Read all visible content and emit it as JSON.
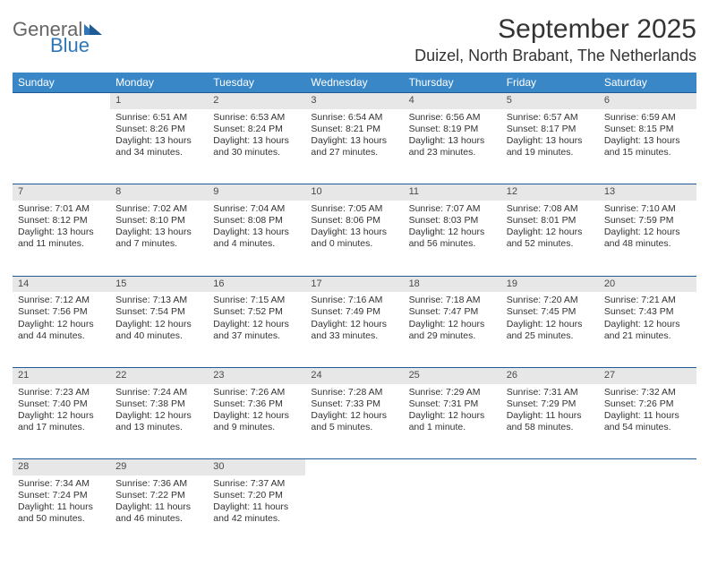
{
  "header": {
    "logo_general": "General",
    "logo_blue": "Blue",
    "month_title": "September 2025",
    "location": "Duizel, North Brabant, The Netherlands"
  },
  "colors": {
    "header_bg": "#3a87c7",
    "header_text": "#ffffff",
    "daynum_bg": "#e7e7e7",
    "border": "#1f5c95",
    "body_text": "#333333",
    "logo_gray": "#666666",
    "logo_blue": "#2f77b6"
  },
  "day_names": [
    "Sunday",
    "Monday",
    "Tuesday",
    "Wednesday",
    "Thursday",
    "Friday",
    "Saturday"
  ],
  "weeks": [
    {
      "nums": [
        "",
        "1",
        "2",
        "3",
        "4",
        "5",
        "6"
      ],
      "cells": [
        {
          "lines": []
        },
        {
          "lines": [
            "Sunrise: 6:51 AM",
            "Sunset: 8:26 PM",
            "Daylight: 13 hours",
            "and 34 minutes."
          ]
        },
        {
          "lines": [
            "Sunrise: 6:53 AM",
            "Sunset: 8:24 PM",
            "Daylight: 13 hours",
            "and 30 minutes."
          ]
        },
        {
          "lines": [
            "Sunrise: 6:54 AM",
            "Sunset: 8:21 PM",
            "Daylight: 13 hours",
            "and 27 minutes."
          ]
        },
        {
          "lines": [
            "Sunrise: 6:56 AM",
            "Sunset: 8:19 PM",
            "Daylight: 13 hours",
            "and 23 minutes."
          ]
        },
        {
          "lines": [
            "Sunrise: 6:57 AM",
            "Sunset: 8:17 PM",
            "Daylight: 13 hours",
            "and 19 minutes."
          ]
        },
        {
          "lines": [
            "Sunrise: 6:59 AM",
            "Sunset: 8:15 PM",
            "Daylight: 13 hours",
            "and 15 minutes."
          ]
        }
      ]
    },
    {
      "nums": [
        "7",
        "8",
        "9",
        "10",
        "11",
        "12",
        "13"
      ],
      "cells": [
        {
          "lines": [
            "Sunrise: 7:01 AM",
            "Sunset: 8:12 PM",
            "Daylight: 13 hours",
            "and 11 minutes."
          ]
        },
        {
          "lines": [
            "Sunrise: 7:02 AM",
            "Sunset: 8:10 PM",
            "Daylight: 13 hours",
            "and 7 minutes."
          ]
        },
        {
          "lines": [
            "Sunrise: 7:04 AM",
            "Sunset: 8:08 PM",
            "Daylight: 13 hours",
            "and 4 minutes."
          ]
        },
        {
          "lines": [
            "Sunrise: 7:05 AM",
            "Sunset: 8:06 PM",
            "Daylight: 13 hours",
            "and 0 minutes."
          ]
        },
        {
          "lines": [
            "Sunrise: 7:07 AM",
            "Sunset: 8:03 PM",
            "Daylight: 12 hours",
            "and 56 minutes."
          ]
        },
        {
          "lines": [
            "Sunrise: 7:08 AM",
            "Sunset: 8:01 PM",
            "Daylight: 12 hours",
            "and 52 minutes."
          ]
        },
        {
          "lines": [
            "Sunrise: 7:10 AM",
            "Sunset: 7:59 PM",
            "Daylight: 12 hours",
            "and 48 minutes."
          ]
        }
      ]
    },
    {
      "nums": [
        "14",
        "15",
        "16",
        "17",
        "18",
        "19",
        "20"
      ],
      "cells": [
        {
          "lines": [
            "Sunrise: 7:12 AM",
            "Sunset: 7:56 PM",
            "Daylight: 12 hours",
            "and 44 minutes."
          ]
        },
        {
          "lines": [
            "Sunrise: 7:13 AM",
            "Sunset: 7:54 PM",
            "Daylight: 12 hours",
            "and 40 minutes."
          ]
        },
        {
          "lines": [
            "Sunrise: 7:15 AM",
            "Sunset: 7:52 PM",
            "Daylight: 12 hours",
            "and 37 minutes."
          ]
        },
        {
          "lines": [
            "Sunrise: 7:16 AM",
            "Sunset: 7:49 PM",
            "Daylight: 12 hours",
            "and 33 minutes."
          ]
        },
        {
          "lines": [
            "Sunrise: 7:18 AM",
            "Sunset: 7:47 PM",
            "Daylight: 12 hours",
            "and 29 minutes."
          ]
        },
        {
          "lines": [
            "Sunrise: 7:20 AM",
            "Sunset: 7:45 PM",
            "Daylight: 12 hours",
            "and 25 minutes."
          ]
        },
        {
          "lines": [
            "Sunrise: 7:21 AM",
            "Sunset: 7:43 PM",
            "Daylight: 12 hours",
            "and 21 minutes."
          ]
        }
      ]
    },
    {
      "nums": [
        "21",
        "22",
        "23",
        "24",
        "25",
        "26",
        "27"
      ],
      "cells": [
        {
          "lines": [
            "Sunrise: 7:23 AM",
            "Sunset: 7:40 PM",
            "Daylight: 12 hours",
            "and 17 minutes."
          ]
        },
        {
          "lines": [
            "Sunrise: 7:24 AM",
            "Sunset: 7:38 PM",
            "Daylight: 12 hours",
            "and 13 minutes."
          ]
        },
        {
          "lines": [
            "Sunrise: 7:26 AM",
            "Sunset: 7:36 PM",
            "Daylight: 12 hours",
            "and 9 minutes."
          ]
        },
        {
          "lines": [
            "Sunrise: 7:28 AM",
            "Sunset: 7:33 PM",
            "Daylight: 12 hours",
            "and 5 minutes."
          ]
        },
        {
          "lines": [
            "Sunrise: 7:29 AM",
            "Sunset: 7:31 PM",
            "Daylight: 12 hours",
            "and 1 minute."
          ]
        },
        {
          "lines": [
            "Sunrise: 7:31 AM",
            "Sunset: 7:29 PM",
            "Daylight: 11 hours",
            "and 58 minutes."
          ]
        },
        {
          "lines": [
            "Sunrise: 7:32 AM",
            "Sunset: 7:26 PM",
            "Daylight: 11 hours",
            "and 54 minutes."
          ]
        }
      ]
    },
    {
      "nums": [
        "28",
        "29",
        "30",
        "",
        "",
        "",
        ""
      ],
      "cells": [
        {
          "lines": [
            "Sunrise: 7:34 AM",
            "Sunset: 7:24 PM",
            "Daylight: 11 hours",
            "and 50 minutes."
          ]
        },
        {
          "lines": [
            "Sunrise: 7:36 AM",
            "Sunset: 7:22 PM",
            "Daylight: 11 hours",
            "and 46 minutes."
          ]
        },
        {
          "lines": [
            "Sunrise: 7:37 AM",
            "Sunset: 7:20 PM",
            "Daylight: 11 hours",
            "and 42 minutes."
          ]
        },
        {
          "lines": []
        },
        {
          "lines": []
        },
        {
          "lines": []
        },
        {
          "lines": []
        }
      ]
    }
  ]
}
